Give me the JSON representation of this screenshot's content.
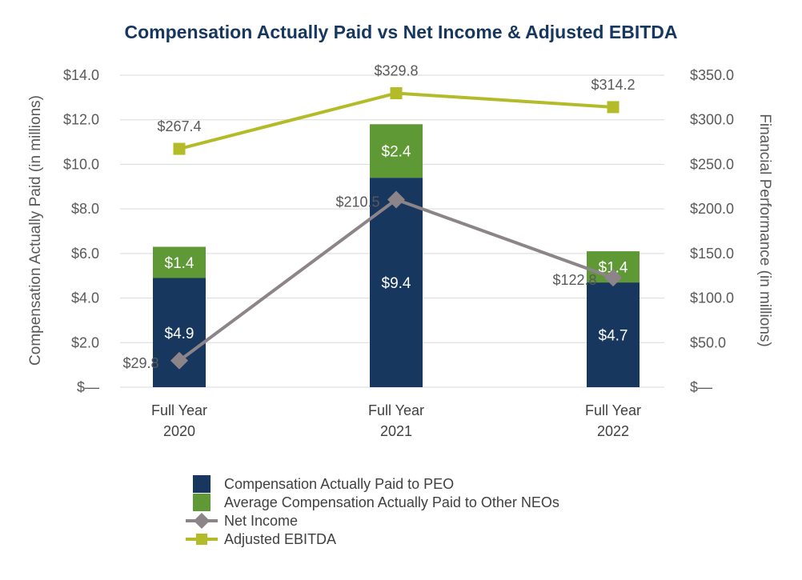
{
  "chart_data": {
    "type": "bar",
    "title": "Compensation Actually Paid vs Net Income & Adjusted EBITDA",
    "categories": [
      [
        "Full Year",
        "2020"
      ],
      [
        "Full Year",
        "2021"
      ],
      [
        "Full Year",
        "2022"
      ]
    ],
    "y_left": {
      "label": "Compensation Actually Paid (in millions)",
      "lim": [
        0,
        14
      ],
      "ticks": [
        0,
        2,
        4,
        6,
        8,
        10,
        12,
        14
      ],
      "tick_labels": [
        "$—",
        "$2.0",
        "$4.0",
        "$6.0",
        "$8.0",
        "$10.0",
        "$12.0",
        "$14.0"
      ]
    },
    "y_right": {
      "label": "Financial Performance (in millions)",
      "lim": [
        0,
        350
      ],
      "ticks": [
        0,
        50,
        100,
        150,
        200,
        250,
        300,
        350
      ],
      "tick_labels": [
        "$—",
        "$50.0",
        "$100.0",
        "$150.0",
        "$200.0",
        "$250.0",
        "$300.0",
        "$350.0"
      ]
    },
    "series": [
      {
        "name": "Compensation Actually Paid to PEO",
        "type": "bar",
        "stack": "comp",
        "axis": "left",
        "values": [
          4.9,
          9.4,
          4.7
        ],
        "labels": [
          "$4.9",
          "$9.4",
          "$4.7"
        ],
        "color": "#17375e"
      },
      {
        "name": "Average Compensation Actually Paid to Other NEOs",
        "type": "bar",
        "stack": "comp",
        "axis": "left",
        "values": [
          1.4,
          2.4,
          1.4
        ],
        "labels": [
          "$1.4",
          "$2.4",
          "$1.4"
        ],
        "color": "#5f9935"
      },
      {
        "name": "Net Income",
        "type": "line",
        "axis": "right",
        "marker": "diamond",
        "values": [
          29.8,
          210.5,
          122.8
        ],
        "labels": [
          "$29.8",
          "$210.5",
          "$122.8"
        ],
        "color": "#8c8489"
      },
      {
        "name": "Adjusted EBITDA",
        "type": "line",
        "axis": "right",
        "marker": "square",
        "values": [
          267.4,
          329.8,
          314.2
        ],
        "labels": [
          "$267.4",
          "$329.8",
          "$314.2"
        ],
        "color": "#b4bb29"
      }
    ],
    "legend_position": "bottom",
    "grid": true
  }
}
